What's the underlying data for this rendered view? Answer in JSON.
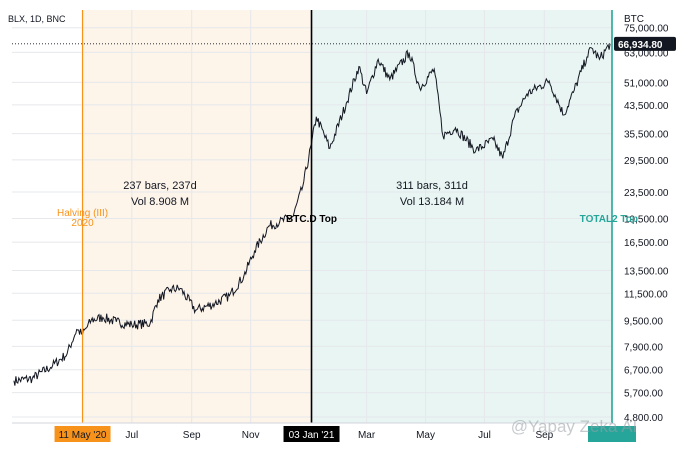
{
  "header": {
    "symbol_label": "BLX, 1D, BNC",
    "currency_label": "BTC"
  },
  "last_price_label": "66,934.80",
  "annotations": {
    "halving_line1": "Halving (III)",
    "halving_line2": "2020",
    "btcd_top": "BTC.D Top",
    "total2_top": "TOTAL2 Top",
    "range1_bars": "237 bars, 237d",
    "range1_vol": "Vol 8.908 M",
    "range2_bars": "311 bars, 311d",
    "range2_vol": "Vol 13.184 M"
  },
  "x_axis_markers": {
    "halving_date": "11 May '20",
    "btcd_date": "03 Jan '21"
  },
  "watermark": "@Yapay Zeka AI",
  "colors": {
    "halving": "#f7931a",
    "range1_fill": "#fdf4ea",
    "btcd": "#000000",
    "range2_fill": "#e8f5f2",
    "total2": "#26a69a",
    "price_line": "#131722"
  },
  "chart_data": {
    "type": "line",
    "title": "BLX, 1D, BNC",
    "xlabel": "",
    "ylabel": "BTC",
    "y_scale": "log",
    "ylim": [
      4600,
      85000
    ],
    "x_range": [
      "2020-02-28",
      "2021-11-10"
    ],
    "x_ticks": [
      "11 May '20",
      "Jul",
      "Sep",
      "Nov",
      "03 Jan '21",
      "Mar",
      "May",
      "Jul",
      "Sep"
    ],
    "y_ticks": [
      "75,000.00",
      "63,000.00",
      "51,000.00",
      "43,500.00",
      "35,500.00",
      "29,500.00",
      "23,500.00",
      "19,500.00",
      "16,500.00",
      "13,500.00",
      "11,500.00",
      "9,500.00",
      "7,900.00",
      "6,700.00",
      "5,700.00",
      "4,800.00"
    ],
    "series": [
      {
        "values": [
          [
            "2020-03-01",
            6200
          ],
          [
            "2020-03-20",
            6300
          ],
          [
            "2020-04-10",
            6900
          ],
          [
            "2020-04-25",
            7500
          ],
          [
            "2020-05-05",
            8900
          ],
          [
            "2020-05-11",
            8600
          ],
          [
            "2020-05-20",
            9500
          ],
          [
            "2020-06-01",
            9700
          ],
          [
            "2020-06-15",
            9400
          ],
          [
            "2020-07-01",
            9200
          ],
          [
            "2020-07-20",
            9300
          ],
          [
            "2020-07-28",
            11000
          ],
          [
            "2020-08-10",
            11800
          ],
          [
            "2020-08-20",
            11900
          ],
          [
            "2020-09-05",
            10200
          ],
          [
            "2020-09-25",
            10700
          ],
          [
            "2020-10-10",
            11300
          ],
          [
            "2020-10-25",
            13000
          ],
          [
            "2020-11-05",
            15500
          ],
          [
            "2020-11-20",
            18500
          ],
          [
            "2020-12-01",
            19000
          ],
          [
            "2020-12-15",
            19800
          ],
          [
            "2020-12-25",
            24500
          ],
          [
            "2021-01-03",
            33000
          ],
          [
            "2021-01-08",
            40000
          ],
          [
            "2021-01-22",
            32000
          ],
          [
            "2021-02-08",
            44000
          ],
          [
            "2021-02-21",
            57000
          ],
          [
            "2021-03-01",
            47000
          ],
          [
            "2021-03-13",
            60000
          ],
          [
            "2021-03-25",
            52000
          ],
          [
            "2021-04-14",
            63000
          ],
          [
            "2021-04-25",
            49000
          ],
          [
            "2021-05-10",
            56000
          ],
          [
            "2021-05-19",
            35000
          ],
          [
            "2021-06-01",
            37000
          ],
          [
            "2021-06-22",
            31500
          ],
          [
            "2021-07-10",
            34000
          ],
          [
            "2021-07-20",
            29800
          ],
          [
            "2021-08-01",
            40000
          ],
          [
            "2021-08-14",
            47000
          ],
          [
            "2021-09-06",
            51500
          ],
          [
            "2021-09-21",
            40500
          ],
          [
            "2021-10-01",
            47500
          ],
          [
            "2021-10-15",
            61000
          ],
          [
            "2021-10-20",
            65000
          ],
          [
            "2021-10-28",
            60000
          ],
          [
            "2021-11-08",
            66934.8
          ]
        ]
      }
    ],
    "events": [
      {
        "date": "2020-05-11"
      },
      {
        "date": "2021-01-03"
      },
      {
        "date": "2021-11-10"
      }
    ],
    "grid": true,
    "legend": "none"
  }
}
